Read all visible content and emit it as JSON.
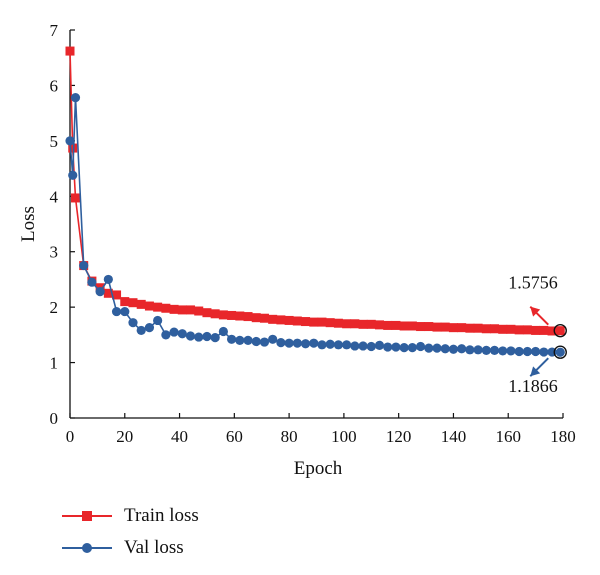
{
  "chart_data": {
    "type": "line",
    "xlabel": "Epoch",
    "ylabel": "Loss",
    "xlim": [
      0,
      180
    ],
    "ylim": [
      0,
      7
    ],
    "xticks": [
      0,
      20,
      40,
      60,
      80,
      100,
      120,
      140,
      160,
      180
    ],
    "yticks": [
      0,
      1,
      2,
      3,
      4,
      5,
      6,
      7
    ],
    "grid": false,
    "legend_position": "bottom-left",
    "series": [
      {
        "name": "Train loss",
        "color": "#e8262a",
        "marker": "square",
        "x": [
          0,
          1,
          2,
          5,
          8,
          11,
          14,
          17,
          20,
          23,
          26,
          29,
          32,
          35,
          38,
          41,
          44,
          47,
          50,
          53,
          56,
          59,
          62,
          65,
          68,
          71,
          74,
          77,
          80,
          83,
          86,
          89,
          92,
          95,
          98,
          101,
          104,
          107,
          110,
          113,
          116,
          119,
          122,
          125,
          128,
          131,
          134,
          137,
          140,
          143,
          146,
          149,
          152,
          155,
          158,
          161,
          164,
          167,
          170,
          173,
          176,
          179
        ],
        "y": [
          6.62,
          4.87,
          3.97,
          2.75,
          2.47,
          2.35,
          2.25,
          2.22,
          2.1,
          2.08,
          2.05,
          2.02,
          2.0,
          1.98,
          1.96,
          1.95,
          1.95,
          1.93,
          1.9,
          1.88,
          1.86,
          1.85,
          1.84,
          1.83,
          1.81,
          1.8,
          1.78,
          1.77,
          1.76,
          1.75,
          1.74,
          1.73,
          1.73,
          1.72,
          1.71,
          1.7,
          1.7,
          1.69,
          1.69,
          1.68,
          1.67,
          1.67,
          1.66,
          1.66,
          1.65,
          1.65,
          1.64,
          1.64,
          1.63,
          1.63,
          1.62,
          1.62,
          1.61,
          1.61,
          1.6,
          1.6,
          1.59,
          1.59,
          1.58,
          1.58,
          1.57,
          1.5756
        ]
      },
      {
        "name": "Val loss",
        "color": "#2f5f9e",
        "marker": "circle",
        "x": [
          0,
          1,
          2,
          5,
          8,
          11,
          14,
          17,
          20,
          23,
          26,
          29,
          32,
          35,
          38,
          41,
          44,
          47,
          50,
          53,
          56,
          59,
          62,
          65,
          68,
          71,
          74,
          77,
          80,
          83,
          86,
          89,
          92,
          95,
          98,
          101,
          104,
          107,
          110,
          113,
          116,
          119,
          122,
          125,
          128,
          131,
          134,
          137,
          140,
          143,
          146,
          149,
          152,
          155,
          158,
          161,
          164,
          167,
          170,
          173,
          176,
          179
        ],
        "y": [
          5.0,
          4.38,
          5.78,
          2.75,
          2.45,
          2.28,
          2.5,
          1.92,
          1.92,
          1.72,
          1.58,
          1.63,
          1.76,
          1.5,
          1.55,
          1.52,
          1.48,
          1.46,
          1.47,
          1.45,
          1.56,
          1.42,
          1.4,
          1.4,
          1.38,
          1.37,
          1.42,
          1.36,
          1.35,
          1.35,
          1.34,
          1.35,
          1.32,
          1.33,
          1.32,
          1.32,
          1.3,
          1.3,
          1.29,
          1.31,
          1.28,
          1.28,
          1.27,
          1.27,
          1.29,
          1.26,
          1.26,
          1.25,
          1.24,
          1.25,
          1.23,
          1.23,
          1.22,
          1.22,
          1.21,
          1.21,
          1.2,
          1.2,
          1.2,
          1.19,
          1.19,
          1.1866
        ]
      }
    ],
    "annotations": [
      {
        "text": "1.5756",
        "series": "Train loss",
        "x": 179,
        "y": 1.5756
      },
      {
        "text": "1.1866",
        "series": "Val loss",
        "x": 179,
        "y": 1.1866
      }
    ]
  }
}
